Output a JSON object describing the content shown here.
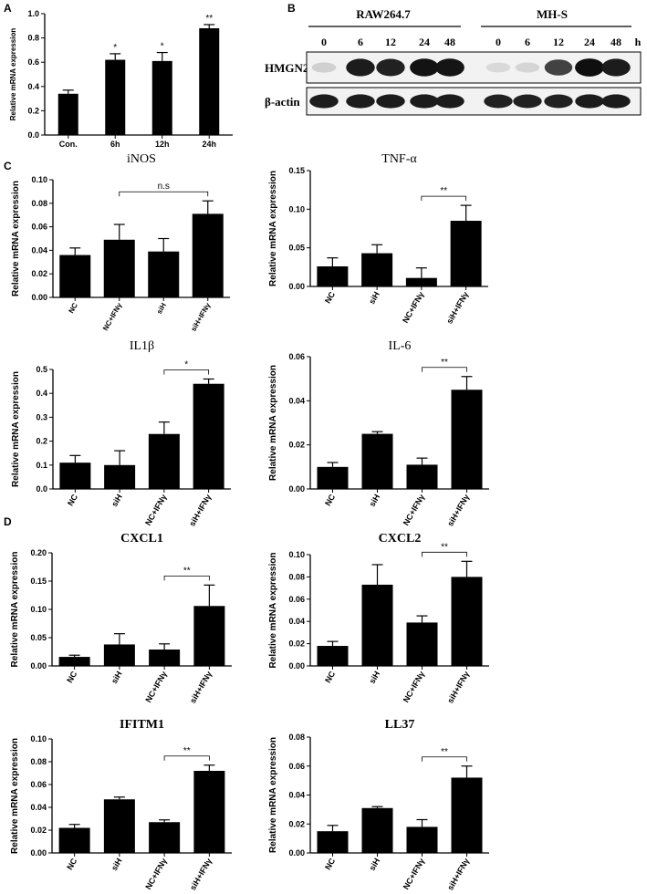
{
  "panel_letters": {
    "a": "A",
    "b": "B",
    "c": "C",
    "d": "D"
  },
  "chart_data": [
    {
      "id": "A",
      "type": "bar",
      "title": "",
      "ylabel": "Relative mRNA expression",
      "categories": [
        "Con.",
        "6h",
        "12h",
        "24h"
      ],
      "values": [
        0.34,
        0.62,
        0.61,
        0.88
      ],
      "errors": [
        0.03,
        0.05,
        0.07,
        0.03
      ],
      "ylim": [
        0,
        1.0
      ],
      "yticks": [
        "0.0",
        "0.2",
        "0.4",
        "0.6",
        "0.8",
        "1.0"
      ],
      "rotate_x": false,
      "significance": [
        {
          "cat": 1,
          "label": "*"
        },
        {
          "cat": 2,
          "label": "*"
        },
        {
          "cat": 3,
          "label": "**"
        }
      ]
    },
    {
      "id": "iNOS",
      "type": "bar",
      "title": "iNOS",
      "ylabel": "Relative mRNA expression",
      "categories": [
        "NC",
        "NC+IFNγ",
        "siH",
        "siH+IFNγ"
      ],
      "values": [
        0.036,
        0.049,
        0.039,
        0.071
      ],
      "errors": [
        0.006,
        0.013,
        0.011,
        0.011
      ],
      "ylim": [
        0,
        0.1
      ],
      "yticks": [
        "0.00",
        "0.02",
        "0.04",
        "0.06",
        "0.08",
        "0.10"
      ],
      "rotate_x": true,
      "bracket": {
        "from": 1,
        "to": 3,
        "label": "n.s"
      }
    },
    {
      "id": "TNF",
      "type": "bar",
      "title": "TNF-α",
      "ylabel": "Relative mRNA expression",
      "categories": [
        "NC",
        "siH",
        "NC+IFNγ",
        "siH+IFNγ"
      ],
      "values": [
        0.026,
        0.043,
        0.011,
        0.085
      ],
      "errors": [
        0.011,
        0.011,
        0.013,
        0.02
      ],
      "ylim": [
        0,
        0.15
      ],
      "yticks": [
        "0.00",
        "0.05",
        "0.10",
        "0.15"
      ],
      "rotate_x": true,
      "bracket": {
        "from": 2,
        "to": 3,
        "label": "**"
      }
    },
    {
      "id": "IL1b",
      "type": "bar",
      "title": "IL1β",
      "ylabel": "Relative mRNA expression",
      "categories": [
        "NC",
        "siH",
        "NC+IFNγ",
        "siH+IFNγ"
      ],
      "values": [
        0.11,
        0.1,
        0.23,
        0.44
      ],
      "errors": [
        0.03,
        0.06,
        0.05,
        0.02
      ],
      "ylim": [
        0,
        0.5
      ],
      "yticks": [
        "0.0",
        "0.1",
        "0.2",
        "0.3",
        "0.4",
        "0.5"
      ],
      "rotate_x": true,
      "bracket": {
        "from": 2,
        "to": 3,
        "label": "*"
      }
    },
    {
      "id": "IL6",
      "type": "bar",
      "title": "IL-6",
      "ylabel": "Relative mRNA expression",
      "categories": [
        "NC",
        "siH",
        "NC+IFNγ",
        "siH+IFNγ"
      ],
      "values": [
        0.01,
        0.025,
        0.011,
        0.045
      ],
      "errors": [
        0.002,
        0.001,
        0.003,
        0.006
      ],
      "ylim": [
        0,
        0.06
      ],
      "yticks": [
        "0.00",
        "0.02",
        "0.04",
        "0.06"
      ],
      "rotate_x": true,
      "bracket": {
        "from": 2,
        "to": 3,
        "label": "**"
      }
    },
    {
      "id": "CXCL1",
      "type": "bar",
      "title": "CXCL1",
      "ylabel": "Relative mRNA expression",
      "categories": [
        "NC",
        "siH",
        "NC+IFNγ",
        "siH+IFNγ"
      ],
      "values": [
        0.016,
        0.038,
        0.029,
        0.106
      ],
      "errors": [
        0.003,
        0.019,
        0.01,
        0.037
      ],
      "ylim": [
        0,
        0.2
      ],
      "yticks": [
        "0.00",
        "0.05",
        "0.10",
        "0.15",
        "0.20"
      ],
      "rotate_x": true,
      "bracket": {
        "from": 2,
        "to": 3,
        "label": "**"
      }
    },
    {
      "id": "CXCL2",
      "type": "bar",
      "title": "CXCL2",
      "ylabel": "Relative mRNA expression",
      "categories": [
        "NC",
        "siH",
        "NC+IFNγ",
        "siH+IFNγ"
      ],
      "values": [
        0.018,
        0.073,
        0.039,
        0.08
      ],
      "errors": [
        0.004,
        0.018,
        0.006,
        0.014
      ],
      "ylim": [
        0,
        0.1
      ],
      "yticks": [
        "0.00",
        "0.02",
        "0.04",
        "0.06",
        "0.08",
        "0.10"
      ],
      "rotate_x": true,
      "bracket": {
        "from": 2,
        "to": 3,
        "label": "**"
      }
    },
    {
      "id": "IFITM1",
      "type": "bar",
      "title": "IFITM1",
      "ylabel": "Relative mRNA expression",
      "categories": [
        "NC",
        "siH",
        "NC+IFNγ",
        "siH+IFNγ"
      ],
      "values": [
        0.022,
        0.047,
        0.027,
        0.072
      ],
      "errors": [
        0.003,
        0.002,
        0.002,
        0.005
      ],
      "ylim": [
        0,
        0.1
      ],
      "yticks": [
        "0.00",
        "0.02",
        "0.04",
        "0.06",
        "0.08",
        "0.10"
      ],
      "rotate_x": true,
      "bracket": {
        "from": 2,
        "to": 3,
        "label": "**"
      }
    },
    {
      "id": "LL37",
      "type": "bar",
      "title": "LL37",
      "ylabel": "Relative mRNA expression",
      "categories": [
        "NC",
        "siH",
        "NC+IFNγ",
        "siH+IFNγ"
      ],
      "values": [
        0.015,
        0.031,
        0.018,
        0.052
      ],
      "errors": [
        0.004,
        0.001,
        0.005,
        0.008
      ],
      "ylim": [
        0,
        0.08
      ],
      "yticks": [
        "0.00",
        "0.02",
        "0.04",
        "0.06",
        "0.08"
      ],
      "rotate_x": true,
      "bracket": {
        "from": 2,
        "to": 3,
        "label": "**"
      }
    }
  ],
  "western_blot": {
    "groups": [
      "RAW264.7",
      "MH-S"
    ],
    "lanes": [
      "0",
      "6",
      "12",
      "24",
      "48"
    ],
    "unit": "h",
    "rows": [
      {
        "label": "HMGN2",
        "intensity": [
          0.12,
          0.92,
          0.9,
          0.96,
          0.95,
          0.08,
          0.1,
          0.75,
          0.98,
          0.92
        ]
      },
      {
        "label": "β-actin",
        "intensity": [
          0.92,
          0.92,
          0.92,
          0.92,
          0.92,
          0.9,
          0.9,
          0.9,
          0.92,
          0.92
        ]
      }
    ]
  }
}
